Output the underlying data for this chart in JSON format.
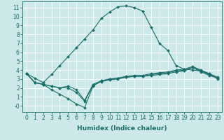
{
  "xlabel": "Humidex (Indice chaleur)",
  "background_color": "#cce8e8",
  "grid_color": "#ffffff",
  "line_color": "#1a6e6a",
  "xlim": [
    -0.5,
    23.5
  ],
  "ylim": [
    -0.7,
    11.7
  ],
  "xticks": [
    0,
    1,
    2,
    3,
    4,
    5,
    6,
    7,
    8,
    9,
    10,
    11,
    12,
    13,
    14,
    15,
    16,
    17,
    18,
    19,
    20,
    21,
    22,
    23
  ],
  "yticks": [
    0,
    1,
    2,
    3,
    4,
    5,
    6,
    7,
    8,
    9,
    10,
    11
  ],
  "ytick_labels": [
    "-0",
    "1",
    "2",
    "3",
    "4",
    "5",
    "6",
    "7",
    "8",
    "9",
    "10",
    "11"
  ],
  "series": [
    {
      "x": [
        0,
        1,
        2,
        3,
        4,
        5,
        6,
        7,
        8,
        9,
        10,
        11,
        12,
        13,
        14,
        15,
        16,
        17,
        18,
        19,
        20,
        21,
        22,
        23
      ],
      "y": [
        3.6,
        3.1,
        2.6,
        3.5,
        4.5,
        5.5,
        6.5,
        7.5,
        8.5,
        9.8,
        10.5,
        11.1,
        11.2,
        11.0,
        10.6,
        8.8,
        7.0,
        6.2,
        4.5,
        4.1,
        4.0,
        3.9,
        3.6,
        3.0
      ]
    },
    {
      "x": [
        0,
        1,
        2,
        3,
        4,
        5,
        6,
        7,
        8,
        9,
        10,
        11,
        12,
        13,
        14,
        15,
        16,
        17,
        18,
        19,
        20,
        21,
        22,
        23
      ],
      "y": [
        3.6,
        2.6,
        2.4,
        1.8,
        1.3,
        0.8,
        0.2,
        -0.2,
        2.2,
        2.8,
        3.0,
        3.1,
        3.2,
        3.3,
        3.3,
        3.4,
        3.5,
        3.6,
        3.8,
        3.9,
        4.3,
        3.8,
        3.4,
        3.1
      ]
    },
    {
      "x": [
        0,
        1,
        2,
        3,
        4,
        5,
        6,
        7,
        8,
        9,
        10,
        11,
        12,
        13,
        14,
        15,
        16,
        17,
        18,
        19,
        20,
        21,
        22,
        23
      ],
      "y": [
        3.6,
        2.6,
        2.4,
        2.2,
        2.0,
        2.0,
        1.5,
        0.5,
        2.3,
        2.7,
        2.9,
        3.0,
        3.2,
        3.3,
        3.3,
        3.5,
        3.6,
        3.7,
        3.9,
        4.0,
        4.3,
        3.9,
        3.5,
        3.1
      ]
    },
    {
      "x": [
        0,
        1,
        2,
        3,
        4,
        5,
        6,
        7,
        8,
        9,
        10,
        11,
        12,
        13,
        14,
        15,
        16,
        17,
        18,
        19,
        20,
        21,
        22,
        23
      ],
      "y": [
        3.6,
        2.6,
        2.4,
        2.2,
        2.0,
        2.2,
        1.8,
        0.6,
        2.4,
        2.8,
        3.0,
        3.1,
        3.3,
        3.4,
        3.4,
        3.6,
        3.7,
        3.8,
        4.0,
        4.1,
        4.4,
        4.0,
        3.6,
        3.2
      ]
    }
  ],
  "marker": "D",
  "markersize": 2.0,
  "linewidth": 0.8,
  "tick_fontsize": 5.5,
  "xlabel_fontsize": 6.5
}
